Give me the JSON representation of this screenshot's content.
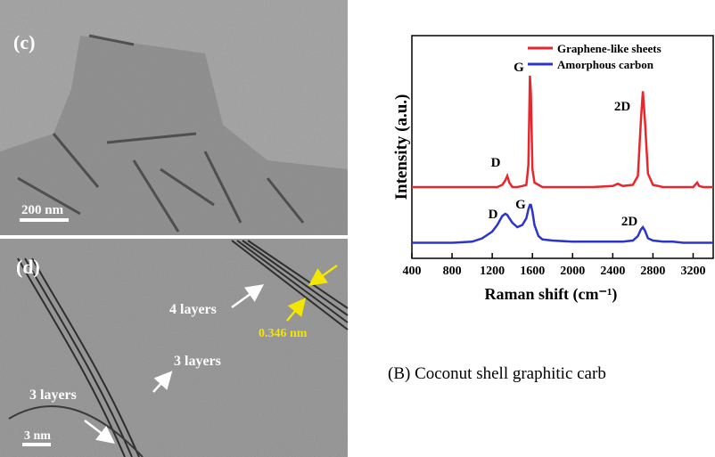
{
  "panels": {
    "c": {
      "label": "(c)",
      "scale": "200 nm"
    },
    "d": {
      "label": "(d)",
      "annotations": [
        "4 layers",
        "0.346 nm",
        "3 layers",
        "3 layers"
      ],
      "scale": "3 nm"
    },
    "caption": "(B) Coconut shell graphitic carb"
  },
  "chart_data": {
    "type": "line",
    "xlabel": "Raman shift (cm⁻¹)",
    "ylabel": "Intensity (a.u.)",
    "x": [
      400,
      600,
      800,
      1000,
      1100,
      1200,
      1250,
      1300,
      1330,
      1350,
      1370,
      1400,
      1450,
      1500,
      1540,
      1560,
      1575,
      1585,
      1600,
      1620,
      1660,
      1700,
      1800,
      2000,
      2200,
      2400,
      2450,
      2500,
      2600,
      2650,
      2680,
      2700,
      2720,
      2750,
      2800,
      2900,
      3000,
      3100,
      3200,
      3240,
      3260,
      3300,
      3400
    ],
    "series": [
      {
        "name": "Graphene-like sheets",
        "color": "#e8262b",
        "values": [
          32,
          32,
          32,
          32,
          32,
          32,
          32,
          33,
          35,
          37,
          34,
          32,
          32,
          32.5,
          33,
          42,
          82,
          74,
          40,
          34,
          33,
          32,
          32,
          32,
          32,
          32.5,
          33.5,
          32.5,
          33,
          37,
          62,
          75,
          62,
          38,
          33,
          32,
          32,
          32,
          32,
          34,
          32.5,
          32,
          32
        ]
      },
      {
        "name": "Amorphous carbon",
        "color": "#2b35c9",
        "values": [
          7,
          7,
          7,
          7.5,
          9,
          12,
          15,
          19,
          20,
          19.5,
          18,
          16,
          14,
          15,
          18,
          22,
          24,
          24,
          21,
          15,
          10,
          8.5,
          8,
          7.5,
          7.5,
          7.5,
          7.5,
          7.5,
          8,
          10,
          13,
          14,
          12.5,
          9,
          8,
          7.5,
          7.5,
          7,
          7,
          7,
          7,
          7,
          7
        ]
      }
    ],
    "annotations": [
      "D",
      "G",
      "2D",
      "D",
      "G",
      "2D"
    ],
    "xlim": [
      400,
      3400
    ],
    "ylim": [
      0,
      100
    ],
    "xticks": [
      400,
      800,
      1200,
      1600,
      2000,
      2400,
      2800,
      3200
    ],
    "legend": "upper right"
  }
}
